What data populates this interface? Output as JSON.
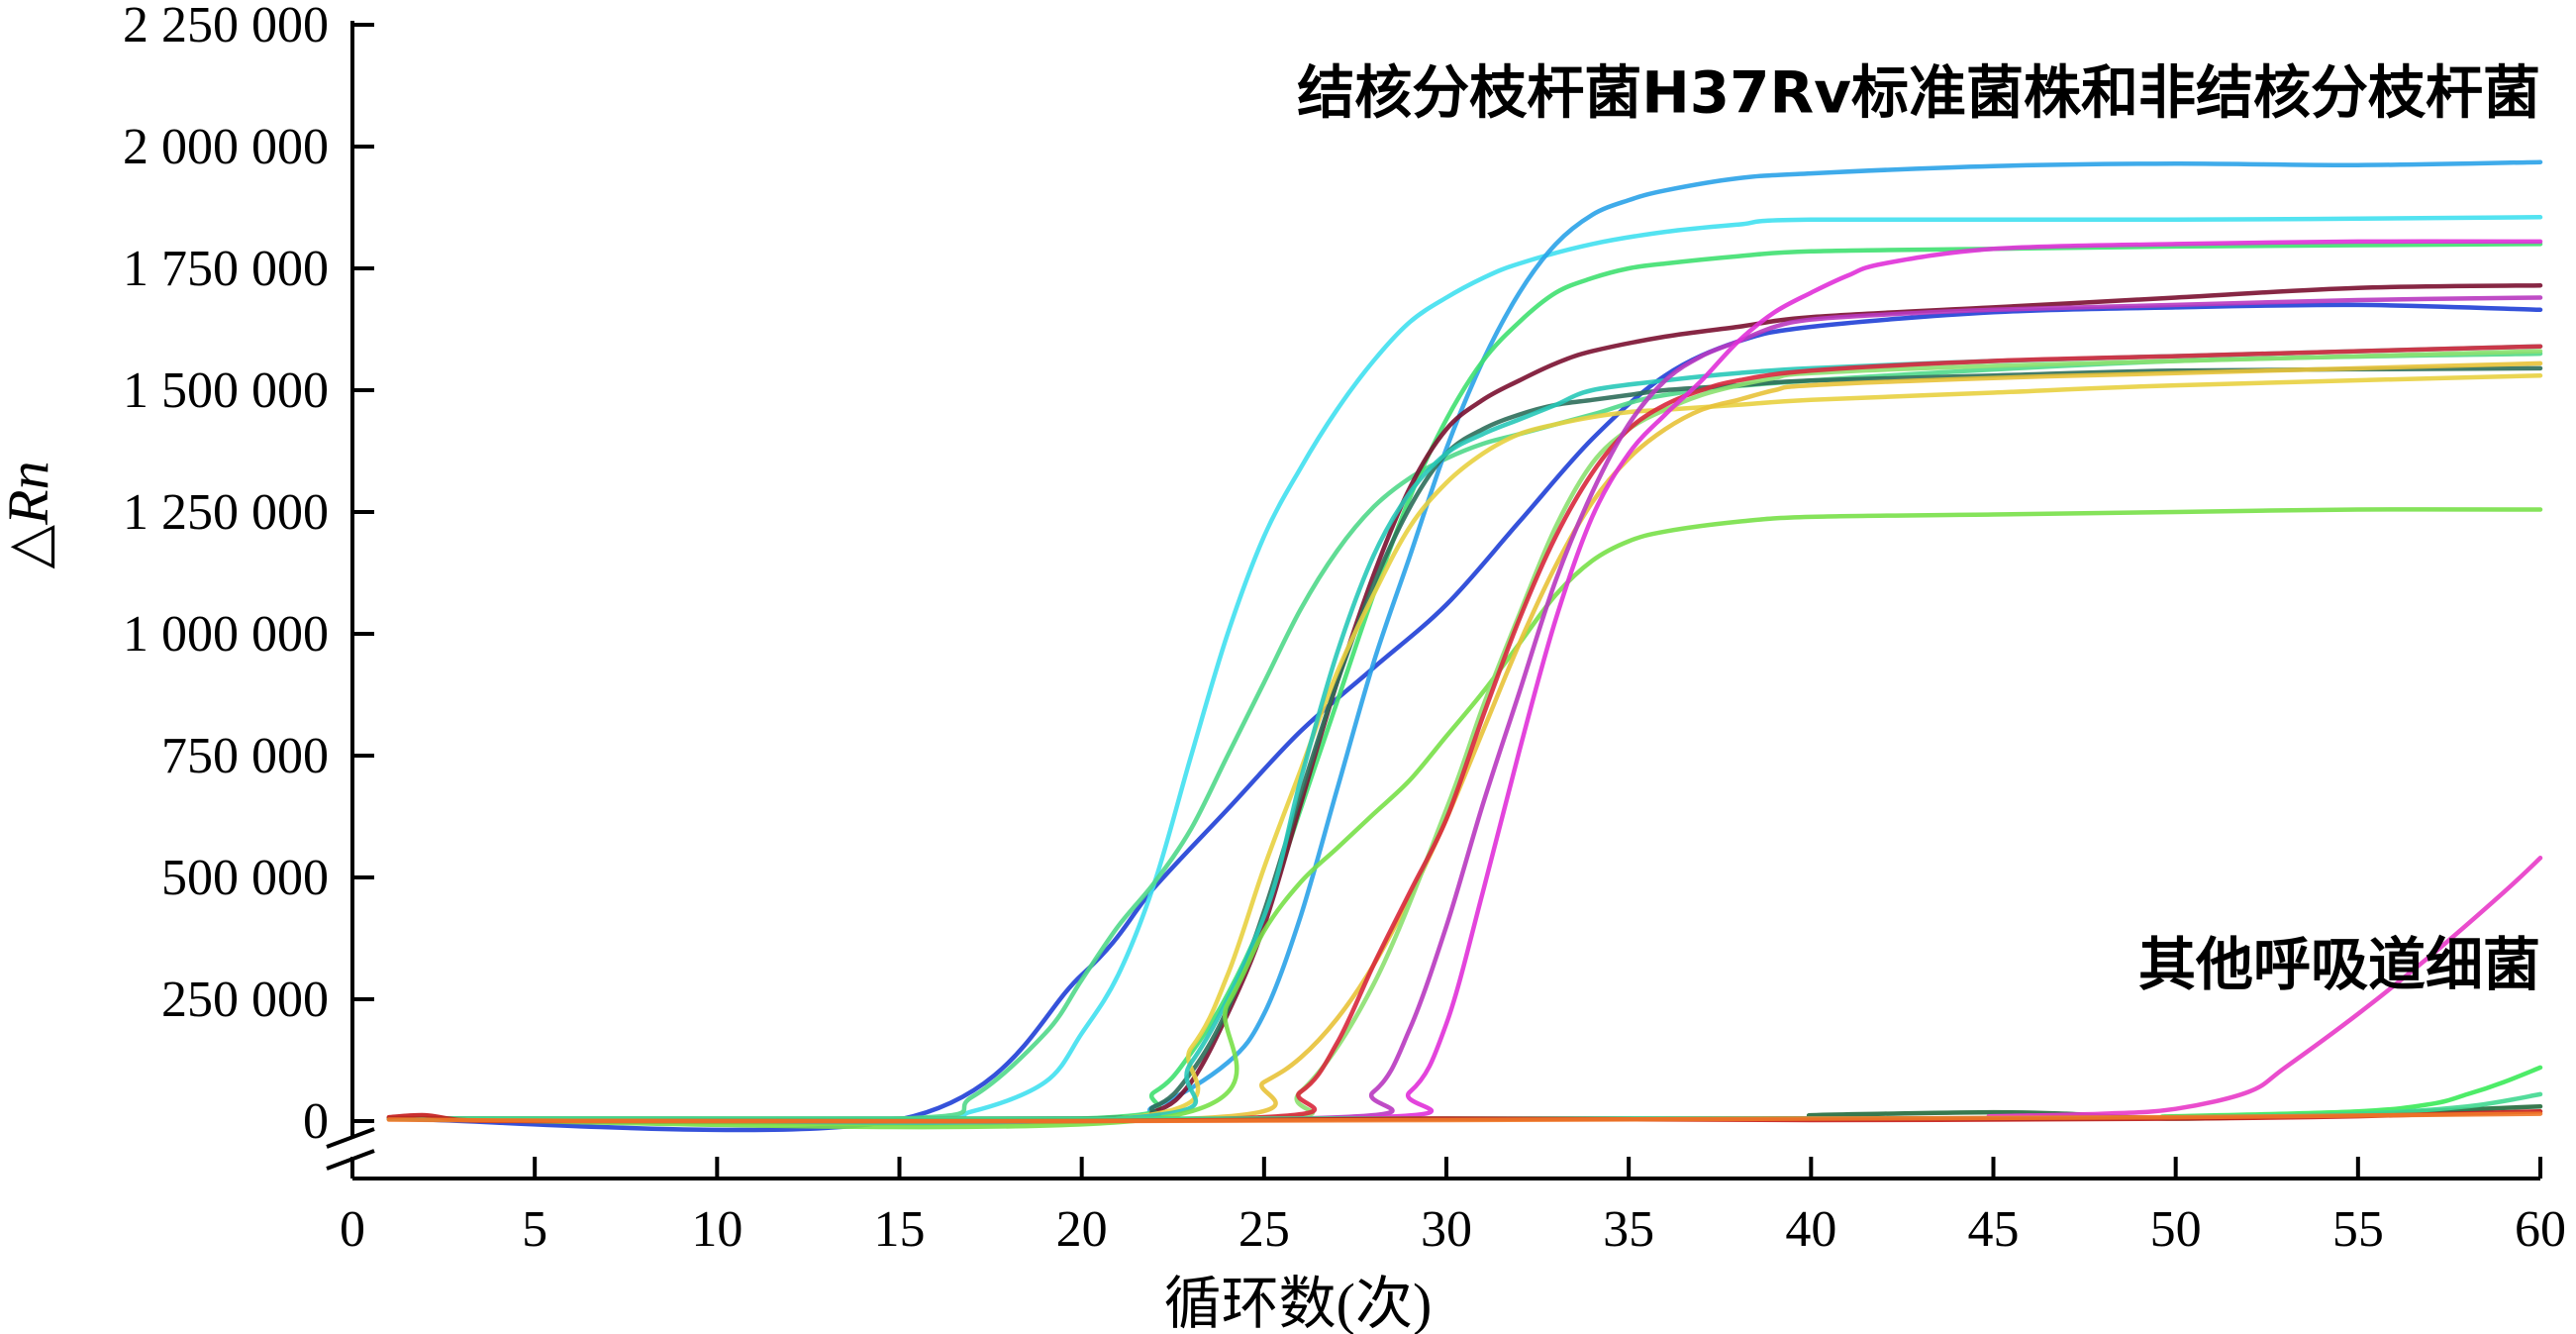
{
  "chart_data": {
    "type": "line",
    "xlabel": "循环数(次)",
    "ylabel": "△Rn",
    "xlim": [
      0,
      60
    ],
    "ylim": [
      0,
      2250000
    ],
    "x_ticks": [
      0,
      5,
      10,
      15,
      20,
      25,
      30,
      35,
      40,
      45,
      50,
      55,
      60
    ],
    "x_tick_labels": [
      "0",
      "5",
      "10",
      "15",
      "20",
      "25",
      "30",
      "35",
      "40",
      "45",
      "50",
      "55",
      "60"
    ],
    "y_ticks": [
      0,
      250000,
      500000,
      750000,
      1000000,
      1250000,
      1500000,
      1750000,
      2000000,
      2250000
    ],
    "y_tick_labels": [
      "0",
      "250 000",
      "500 000",
      "750 000",
      "1 000 000",
      "1 250 000",
      "1 500 000",
      "1 750 000",
      "2 000 000",
      "2 250 000"
    ],
    "axis_break": "y-bottom",
    "grid": false,
    "annotations": [
      {
        "text": "结核分枝杆菌H37Rv标准菌株和非结核分枝杆菌",
        "x": 60,
        "y": 2070000,
        "anchor": "end"
      },
      {
        "text": "其他呼吸道细菌",
        "x": 60,
        "y": 280000,
        "anchor": "end"
      }
    ],
    "series": [
      {
        "color": "#1f3fd6",
        "x": [
          1,
          15,
          20,
          22,
          24,
          26,
          28,
          30,
          32,
          34,
          36,
          38,
          40,
          45,
          50,
          55,
          60
        ],
        "y": [
          5000,
          3000,
          300000,
          480000,
          640000,
          800000,
          930000,
          1060000,
          1230000,
          1400000,
          1530000,
          1600000,
          1630000,
          1660000,
          1670000,
          1675000,
          1665000
        ]
      },
      {
        "color": "#40e0f0",
        "x": [
          1,
          15,
          17,
          19,
          20,
          21,
          22,
          23,
          24,
          25,
          26,
          27,
          28,
          29,
          30,
          31,
          32,
          34,
          36,
          38,
          40,
          50,
          60
        ],
        "y": [
          5000,
          5000,
          20000,
          80000,
          180000,
          300000,
          490000,
          750000,
          1000000,
          1200000,
          1340000,
          1460000,
          1560000,
          1640000,
          1690000,
          1730000,
          1760000,
          1800000,
          1825000,
          1840000,
          1850000,
          1850000,
          1855000
        ]
      },
      {
        "color": "#50d88a",
        "x": [
          1,
          15,
          17,
          19,
          20,
          21,
          22,
          23,
          24,
          25,
          26,
          27,
          28,
          29,
          30,
          31,
          32,
          34,
          36,
          40,
          50,
          60
        ],
        "y": [
          5000,
          5000,
          50000,
          180000,
          290000,
          400000,
          490000,
          600000,
          750000,
          900000,
          1050000,
          1170000,
          1260000,
          1320000,
          1360000,
          1390000,
          1410000,
          1450000,
          1490000,
          1520000,
          1560000,
          1575000
        ]
      },
      {
        "color": "#2aa2e8",
        "x": [
          1,
          20,
          22,
          24,
          25,
          26,
          27,
          28,
          29,
          30,
          31,
          32,
          33,
          34,
          35,
          36,
          38,
          40,
          45,
          50,
          55,
          60
        ],
        "y": [
          5000,
          5000,
          30000,
          120000,
          220000,
          420000,
          680000,
          940000,
          1160000,
          1380000,
          1560000,
          1700000,
          1800000,
          1860000,
          1890000,
          1910000,
          1935000,
          1945000,
          1960000,
          1965000,
          1962000,
          1968000
        ]
      },
      {
        "color": "#3fe070",
        "x": [
          1,
          20,
          22,
          23,
          24,
          25,
          26,
          27,
          28,
          29,
          30,
          31,
          32,
          33,
          34,
          35,
          36,
          38,
          40,
          45,
          50,
          60
        ],
        "y": [
          5000,
          5000,
          60000,
          140000,
          260000,
          420000,
          640000,
          860000,
          1080000,
          1280000,
          1440000,
          1560000,
          1640000,
          1700000,
          1730000,
          1750000,
          1760000,
          1775000,
          1785000,
          1790000,
          1795000,
          1800000
        ]
      },
      {
        "color": "#7a1030",
        "x": [
          1,
          20,
          22,
          23,
          24,
          25,
          26,
          27,
          28,
          29,
          30,
          31,
          32,
          33,
          34,
          36,
          38,
          40,
          45,
          50,
          55,
          60
        ],
        "y": [
          5000,
          5000,
          20000,
          80000,
          220000,
          400000,
          650000,
          900000,
          1120000,
          1300000,
          1420000,
          1480000,
          1520000,
          1555000,
          1580000,
          1610000,
          1630000,
          1650000,
          1670000,
          1690000,
          1710000,
          1715000
        ]
      },
      {
        "color": "#2e6e5a",
        "x": [
          1,
          20,
          22,
          23,
          24,
          25,
          26,
          27,
          28,
          29,
          30,
          31,
          32,
          33,
          34,
          35,
          36,
          38,
          40,
          45,
          50,
          60
        ],
        "y": [
          5000,
          5000,
          30000,
          100000,
          230000,
          430000,
          670000,
          900000,
          1100000,
          1260000,
          1370000,
          1420000,
          1450000,
          1470000,
          1480000,
          1490000,
          1500000,
          1510000,
          1520000,
          1530000,
          1540000,
          1545000
        ]
      },
      {
        "color": "#e8d040",
        "x": [
          1,
          21,
          23,
          24,
          25,
          26,
          27,
          28,
          29,
          30,
          31,
          32,
          33,
          34,
          35,
          36,
          38,
          40,
          45,
          50,
          60
        ],
        "y": [
          5000,
          5000,
          150000,
          300000,
          520000,
          720000,
          920000,
          1080000,
          1220000,
          1310000,
          1370000,
          1410000,
          1430000,
          1445000,
          1455000,
          1460000,
          1470000,
          1480000,
          1495000,
          1510000,
          1530000
        ]
      },
      {
        "color": "#28c8b8",
        "x": [
          1,
          21,
          23,
          25,
          26,
          27,
          28,
          29,
          30,
          31,
          32,
          33,
          34,
          36,
          38,
          40,
          45,
          50,
          55,
          60
        ],
        "y": [
          5000,
          5000,
          120000,
          420000,
          700000,
          960000,
          1160000,
          1290000,
          1370000,
          1410000,
          1440000,
          1470000,
          1500000,
          1520000,
          1535000,
          1545000,
          1560000,
          1570000,
          1580000,
          1590000
        ]
      },
      {
        "color": "#78e048",
        "x": [
          1,
          22,
          24,
          25,
          26,
          27,
          28,
          29,
          30,
          31,
          32,
          33,
          34,
          35,
          36,
          38,
          40,
          45,
          50,
          55,
          60
        ],
        "y": [
          5000,
          5000,
          240000,
          390000,
          490000,
          560000,
          630000,
          700000,
          790000,
          880000,
          980000,
          1080000,
          1150000,
          1190000,
          1210000,
          1230000,
          1240000,
          1245000,
          1250000,
          1255000,
          1255000
        ]
      },
      {
        "color": "#e8c238",
        "x": [
          1,
          23,
          25,
          26,
          27,
          28,
          29,
          30,
          31,
          32,
          33,
          34,
          35,
          36,
          37,
          38,
          39,
          40,
          45,
          50,
          60
        ],
        "y": [
          5000,
          5000,
          80000,
          130000,
          210000,
          320000,
          460000,
          620000,
          800000,
          980000,
          1140000,
          1270000,
          1360000,
          1420000,
          1460000,
          1480000,
          1500000,
          1510000,
          1525000,
          1535000,
          1555000
        ]
      },
      {
        "color": "#8ce070",
        "x": [
          1,
          24,
          26,
          28,
          30,
          31,
          32,
          33,
          34,
          35,
          36,
          37,
          38,
          39,
          40,
          45,
          50,
          55,
          60
        ],
        "y": [
          5000,
          5000,
          60000,
          280000,
          640000,
          850000,
          1040000,
          1220000,
          1350000,
          1420000,
          1460000,
          1490000,
          1510000,
          1525000,
          1535000,
          1550000,
          1560000,
          1570000,
          1580000
        ]
      },
      {
        "color": "#d8283c",
        "x": [
          1,
          24,
          26,
          27,
          28,
          29,
          30,
          31,
          32,
          33,
          34,
          35,
          36,
          37,
          38,
          40,
          45,
          50,
          55,
          60
        ],
        "y": [
          5000,
          5000,
          60000,
          160000,
          320000,
          470000,
          620000,
          830000,
          1030000,
          1200000,
          1330000,
          1420000,
          1470000,
          1500000,
          1520000,
          1540000,
          1560000,
          1570000,
          1580000,
          1590000
        ]
      },
      {
        "color": "#b838c0",
        "x": [
          1,
          26,
          28,
          29,
          30,
          31,
          32,
          33,
          34,
          35,
          36,
          37,
          38,
          39,
          40,
          42,
          45,
          50,
          55,
          60
        ],
        "y": [
          5000,
          5000,
          60000,
          190000,
          400000,
          650000,
          880000,
          1110000,
          1290000,
          1430000,
          1520000,
          1570000,
          1600000,
          1630000,
          1645000,
          1655000,
          1665000,
          1675000,
          1685000,
          1690000
        ]
      },
      {
        "color": "#e030d8",
        "x": [
          1,
          27,
          29,
          30,
          31,
          32,
          33,
          34,
          35,
          36,
          37,
          38,
          39,
          40,
          41,
          42,
          45,
          50,
          55,
          60
        ],
        "y": [
          5000,
          5000,
          60000,
          200000,
          470000,
          760000,
          1030000,
          1240000,
          1370000,
          1450000,
          1520000,
          1600000,
          1660000,
          1700000,
          1735000,
          1760000,
          1790000,
          1800000,
          1805000,
          1805000
        ]
      },
      {
        "color": "#226a3c",
        "x": [
          1,
          38,
          40,
          42,
          45,
          47,
          50,
          55,
          60
        ],
        "y": [
          5000,
          5000,
          12000,
          15000,
          18000,
          15000,
          5000,
          15000,
          30000
        ]
      },
      {
        "color": "#e83ac8",
        "x": [
          1,
          42,
          45,
          48,
          50,
          52,
          53,
          55,
          57,
          59,
          60
        ],
        "y": [
          5000,
          5000,
          10000,
          15000,
          25000,
          60000,
          110000,
          220000,
          340000,
          470000,
          540000
        ]
      },
      {
        "color": "#3aea58",
        "x": [
          1,
          45,
          50,
          55,
          57,
          58,
          59,
          60
        ],
        "y": [
          5000,
          5000,
          10000,
          20000,
          35000,
          55000,
          80000,
          110000
        ]
      },
      {
        "color": "#40d890",
        "x": [
          1,
          45,
          50,
          55,
          58,
          60
        ],
        "y": [
          5000,
          5000,
          8000,
          15000,
          30000,
          55000
        ]
      },
      {
        "color": "#c41818",
        "x": [
          1,
          2,
          3,
          5,
          10,
          20,
          30,
          40,
          50,
          55,
          60
        ],
        "y": [
          8000,
          12000,
          2000,
          0,
          0,
          0,
          5000,
          2000,
          5000,
          10000,
          20000
        ]
      },
      {
        "color": "#f07828",
        "x": [
          1,
          5,
          10,
          20,
          30,
          40,
          50,
          60
        ],
        "y": [
          3000,
          1000,
          0,
          0,
          2000,
          5000,
          8000,
          15000
        ]
      }
    ]
  }
}
